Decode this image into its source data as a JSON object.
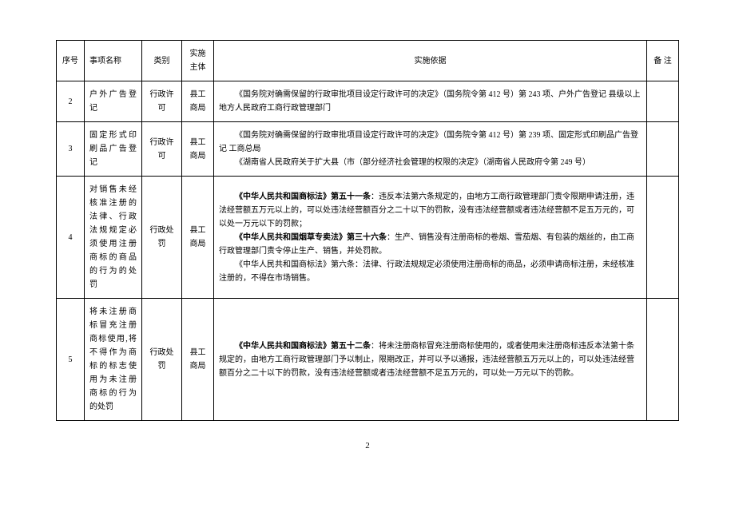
{
  "columns": {
    "seq": "序号",
    "name": "事项名称",
    "cat": "类别",
    "org": "实施主体",
    "basis": "实施依据",
    "note": "备  注"
  },
  "rows": [
    {
      "seq": "2",
      "name": "户外广告登记",
      "cat": "行政许可",
      "org": "县工商局",
      "basis_lines": [
        {
          "text": "《国务院对确需保留的行政审批项目设定行政许可的决定》（国务院令第 412 号）第 243 项、户外广告登记 县级以上地方人民政府工商行政管理部门",
          "bold_prefix": "",
          "rest": ""
        }
      ]
    },
    {
      "seq": "3",
      "name": "固定形式印刷品广告登记",
      "cat": "行政许可",
      "org": "县工商局",
      "basis_lines": [
        {
          "text": "《国务院对确需保留的行政审批项目设定行政许可的决定》（国务院令第 412 号）第 239 项、固定形式印刷品广告登记 工商总局"
        },
        {
          "text": "《湖南省人民政府关于扩大县（市（部分经济社会管理的权限的决定》（湖南省人民政府令第 249 号）"
        }
      ]
    },
    {
      "seq": "4",
      "name": "对销售未经核准注册的法律、行政法规规定必须使用注册商标的商品的行为的处罚",
      "cat": "行政处罚",
      "org": "县工商局",
      "basis_lines": [
        {
          "bold": "《中华人民共和国商标法》第五十一条",
          "rest": "：违反本法第六条规定的，由地方工商行政管理部门责令限期申请注册，违法经营额五万元以上的，可以处违法经营额百分之二十以下的罚款，没有违法经营额或者违法经营额不足五万元的，可以处一万元以下的罚款；"
        },
        {
          "bold": "《中华人民共和国烟草专卖法》第三十六条",
          "rest": "：生产、销售没有注册商标的卷烟、雪茄烟、有包装的烟丝的，由工商行政管理部门责令停止生产、销售，并处罚款。"
        },
        {
          "text": "《中华人民共和国商标法》第六条：法律、行政法规规定必须使用注册商标的商品，必须申请商标注册，未经核准注册的，不得在市场销售。"
        }
      ]
    },
    {
      "seq": "5",
      "name": "将未注册商标冒充注册商标使用,将不得作为商标的标志使用为未注册商标的行为的处罚",
      "cat": "行政处罚",
      "org": "县工商局",
      "basis_lines": [
        {
          "bold": "《中华人民共和国商标法》第五十二条",
          "rest": "：将未注册商标冒充注册商标使用的，或者使用未注册商标违反本法第十条规定的，由地方工商行政管理部门予以制止，限期改正，并可以予以通报，违法经营额五万元以上的，可以处违法经营额百分之二十以下的罚款，没有违法经营额或者违法经营额不足五万元的，可以处一万元以下的罚款。"
        }
      ]
    }
  ],
  "page_number": "2"
}
